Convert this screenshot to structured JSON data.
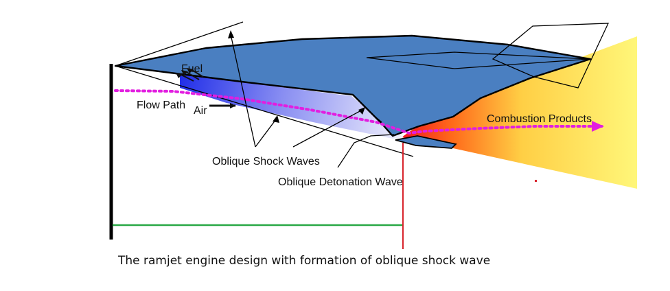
{
  "labels": {
    "fuel": "Fuel",
    "flow_path": "Flow Path",
    "air": "Air",
    "combustion_products": "Combustion Products",
    "oblique_shock_waves": "Oblique Shock Waves",
    "oblique_detonation_wave": "Oblique Detonation Wave"
  },
  "caption": "The ramjet engine design with formation of oblique shock wave",
  "colors": {
    "body": "#4a7fc1",
    "flow_path_dots": "#e21ee0",
    "exhaust_hot": "#f11c1c",
    "exhaust_cool": "#fff77a",
    "baseline": "#29a845",
    "marker": "#d8242c"
  }
}
